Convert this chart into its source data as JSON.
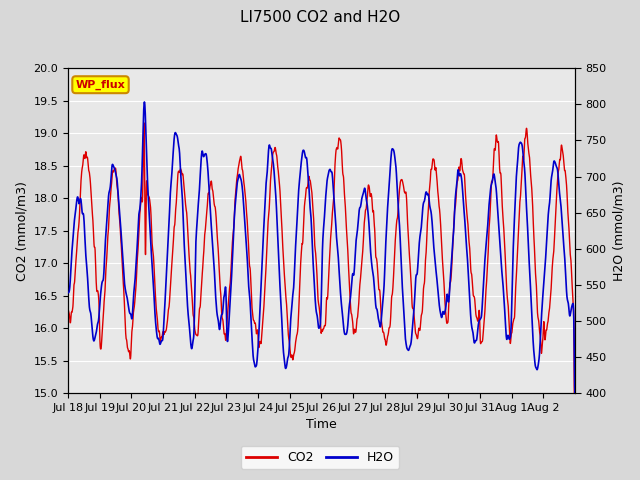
{
  "title": "LI7500 CO2 and H2O",
  "xlabel": "Time",
  "ylabel_left": "CO2 (mmol/m3)",
  "ylabel_right": "H2O (mmol/m3)",
  "ylim_left": [
    15.0,
    20.0
  ],
  "ylim_right": [
    400,
    850
  ],
  "xtick_labels": [
    "Jul 18",
    "Jul 19",
    "Jul 20",
    "Jul 21",
    "Jul 22",
    "Jul 23",
    "Jul 24",
    "Jul 25",
    "Jul 26",
    "Jul 27",
    "Jul 28",
    "Jul 29",
    "Jul 30",
    "Jul 31",
    "Aug 1",
    "Aug 2"
  ],
  "co2_color": "#dd0000",
  "h2o_color": "#0000cc",
  "background_color": "#d8d8d8",
  "plot_bg_color": "#e8e8e8",
  "legend_label_co2": "CO2",
  "legend_label_h2o": "H2O",
  "annotation_text": "WP_flux",
  "annotation_bg": "#ffff00",
  "annotation_edge": "#cc8800",
  "title_fontsize": 11,
  "axis_fontsize": 9,
  "tick_fontsize": 8,
  "grid_color": "white",
  "linewidth_co2": 1.0,
  "linewidth_h2o": 1.2
}
